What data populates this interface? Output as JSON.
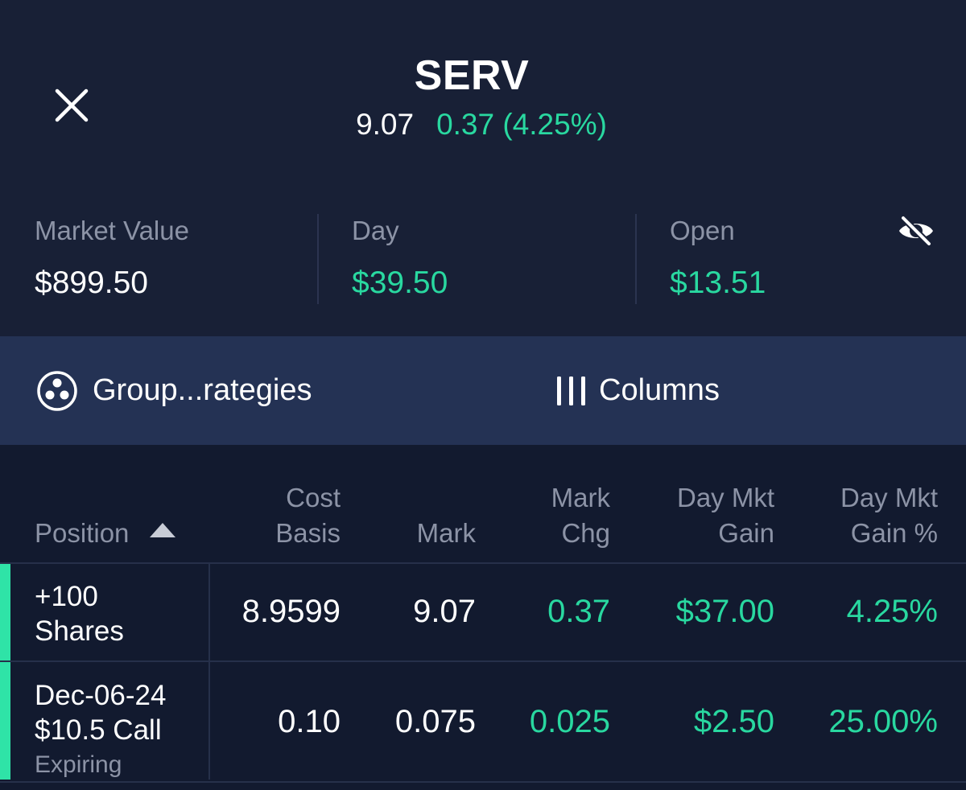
{
  "header": {
    "symbol": "SERV",
    "last": "9.07",
    "change": "0.37 (4.25%)"
  },
  "summary": {
    "market_value": {
      "label": "Market Value",
      "value": "$899.50"
    },
    "day": {
      "label": "Day",
      "value": "$39.50"
    },
    "open": {
      "label": "Open",
      "value": "$13.51"
    }
  },
  "toolbar": {
    "group_label": "Group...rategies",
    "columns_label": "Columns"
  },
  "table": {
    "headers": {
      "position": "Position",
      "cost_basis": [
        "Cost",
        "Basis"
      ],
      "mark": "Mark",
      "mark_chg": [
        "Mark",
        "Chg"
      ],
      "day_mkt_gain": [
        "Day Mkt",
        "Gain"
      ],
      "day_mkt_gain_pct": [
        "Day Mkt",
        "Gain %"
      ]
    },
    "rows": [
      {
        "position_line1": "+100",
        "position_line2": "Shares",
        "cost_basis": "8.9599",
        "mark": "9.07",
        "mark_chg": "0.37",
        "day_mkt_gain": "$37.00",
        "day_mkt_gain_pct": "4.25%"
      },
      {
        "position_line1": "Dec-06-24",
        "position_line2": "$10.5 Call",
        "position_line3": "Expiring",
        "cost_basis": "0.10",
        "mark": "0.075",
        "mark_chg": "0.025",
        "day_mkt_gain": "$2.50",
        "day_mkt_gain_pct": "25.00%"
      }
    ]
  },
  "colors": {
    "background": "#182036",
    "toolbar": "#243254",
    "table_bg": "#121a2f",
    "positive": "#29d8a0",
    "muted": "#8c93a6",
    "accent": "#2fe3a7"
  },
  "icons": {
    "close": "close-icon",
    "visibility": "eye-off-icon",
    "group": "group-strategies-icon",
    "columns": "columns-icon",
    "sort": "sort-ascending-icon"
  }
}
